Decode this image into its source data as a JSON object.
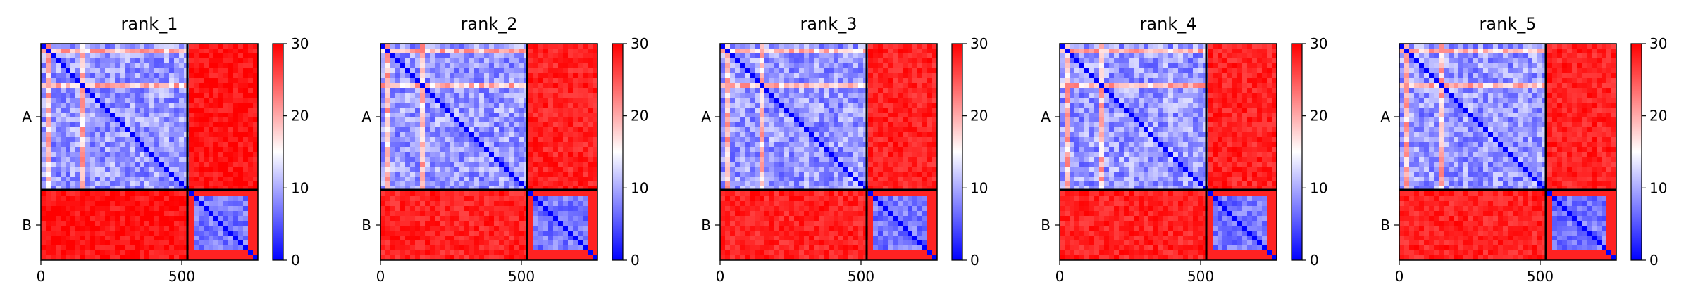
{
  "chart_data": [
    {
      "type": "heatmap",
      "title": "rank_1",
      "x_ticks": [
        0,
        500
      ],
      "y_tick_labels": [
        "A",
        "B"
      ],
      "chains": [
        {
          "name": "A",
          "start": 0,
          "end": 520
        },
        {
          "name": "B",
          "start": 520,
          "end": 770
        }
      ],
      "x_range": [
        0,
        770
      ],
      "colorbar": {
        "min": 0,
        "max": 30,
        "ticks": [
          0,
          10,
          20,
          30
        ],
        "colormap": "bwr"
      },
      "pattern": {
        "intra_A": 9,
        "intra_B": 7,
        "inter": 29
      }
    },
    {
      "type": "heatmap",
      "title": "rank_2",
      "x_ticks": [
        0,
        500
      ],
      "y_tick_labels": [
        "A",
        "B"
      ],
      "chains": [
        {
          "name": "A",
          "start": 0,
          "end": 520
        },
        {
          "name": "B",
          "start": 520,
          "end": 770
        }
      ],
      "x_range": [
        0,
        770
      ],
      "colorbar": {
        "min": 0,
        "max": 30,
        "ticks": [
          0,
          10,
          20,
          30
        ],
        "colormap": "bwr"
      },
      "pattern": {
        "intra_A": 9,
        "intra_B": 7,
        "inter": 28
      }
    },
    {
      "type": "heatmap",
      "title": "rank_3",
      "x_ticks": [
        0,
        500
      ],
      "y_tick_labels": [
        "A",
        "B"
      ],
      "chains": [
        {
          "name": "A",
          "start": 0,
          "end": 520
        },
        {
          "name": "B",
          "start": 520,
          "end": 770
        }
      ],
      "x_range": [
        0,
        770
      ],
      "colorbar": {
        "min": 0,
        "max": 30,
        "ticks": [
          0,
          10,
          20,
          30
        ],
        "colormap": "bwr"
      },
      "pattern": {
        "intra_A": 9,
        "intra_B": 7,
        "inter": 28
      }
    },
    {
      "type": "heatmap",
      "title": "rank_4",
      "x_ticks": [
        0,
        500
      ],
      "y_tick_labels": [
        "A",
        "B"
      ],
      "chains": [
        {
          "name": "A",
          "start": 0,
          "end": 520
        },
        {
          "name": "B",
          "start": 520,
          "end": 770
        }
      ],
      "x_range": [
        0,
        770
      ],
      "colorbar": {
        "min": 0,
        "max": 30,
        "ticks": [
          0,
          10,
          20,
          30
        ],
        "colormap": "bwr"
      },
      "pattern": {
        "intra_A": 9,
        "intra_B": 7,
        "inter": 28
      }
    },
    {
      "type": "heatmap",
      "title": "rank_5",
      "x_ticks": [
        0,
        500
      ],
      "y_tick_labels": [
        "A",
        "B"
      ],
      "chains": [
        {
          "name": "A",
          "start": 0,
          "end": 520
        },
        {
          "name": "B",
          "start": 520,
          "end": 770
        }
      ],
      "x_range": [
        0,
        770
      ],
      "colorbar": {
        "min": 0,
        "max": 30,
        "ticks": [
          0,
          10,
          20,
          30
        ],
        "colormap": "bwr"
      },
      "pattern": {
        "intra_A": 9,
        "intra_B": 7,
        "inter": 28
      }
    }
  ]
}
